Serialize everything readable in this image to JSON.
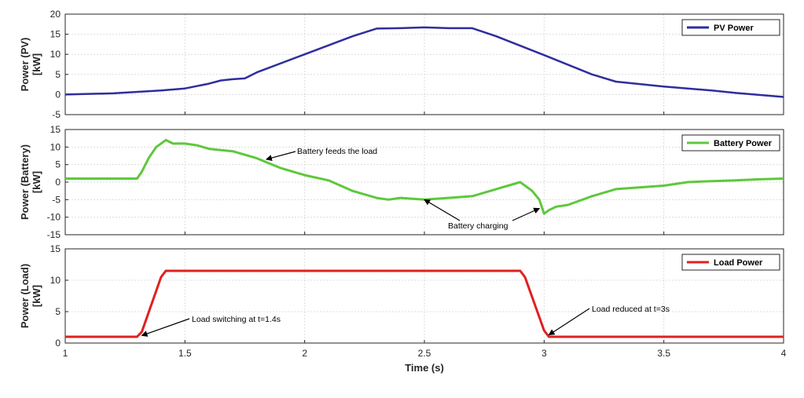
{
  "chart_data": {
    "type": "line",
    "xlabel": "Time (s)",
    "xlim": [
      1,
      4
    ],
    "xticks": [
      1,
      1.5,
      2,
      2.5,
      3,
      3.5,
      4
    ],
    "xtick_labels": [
      "1",
      "1.5",
      "2",
      "2.5",
      "3",
      "3.5",
      "4"
    ],
    "grid": true,
    "panels": [
      {
        "id": "pv",
        "ylabel_lines": [
          "Power (PV)",
          "[kW]"
        ],
        "ylim": [
          -5,
          20
        ],
        "yticks": [
          -5,
          0,
          5,
          10,
          15,
          20
        ],
        "ytick_labels": [
          "-5",
          "0",
          "5",
          "10",
          "15",
          "20"
        ],
        "legend": "top-right",
        "series": [
          {
            "name": "PV Power",
            "color": "#2e2e9e",
            "x": [
              1.0,
              1.2,
              1.4,
              1.5,
              1.6,
              1.65,
              1.7,
              1.75,
              1.8,
              2.0,
              2.2,
              2.3,
              2.4,
              2.5,
              2.6,
              2.7,
              2.8,
              3.0,
              3.2,
              3.3,
              3.5,
              3.6,
              3.7,
              3.8,
              4.0
            ],
            "y": [
              0.0,
              0.3,
              1.0,
              1.5,
              2.7,
              3.5,
              3.8,
              4.0,
              5.5,
              10.0,
              14.5,
              16.4,
              16.5,
              16.7,
              16.5,
              16.5,
              14.5,
              9.8,
              5.0,
              3.2,
              2.0,
              1.5,
              1.0,
              0.4,
              -0.6
            ]
          }
        ],
        "annotations": []
      },
      {
        "id": "battery",
        "ylabel_lines": [
          "Power (Battery)",
          "[kW]"
        ],
        "ylim": [
          -15,
          15
        ],
        "yticks": [
          -15,
          -10,
          -5,
          0,
          5,
          10,
          15
        ],
        "ytick_labels": [
          "-15",
          "-10",
          "-5",
          "0",
          "5",
          "10",
          "15"
        ],
        "legend": "top-right",
        "series": [
          {
            "name": "Battery Power",
            "color": "#5ec83c",
            "x": [
              1.0,
              1.3,
              1.32,
              1.35,
              1.38,
              1.42,
              1.45,
              1.5,
              1.55,
              1.6,
              1.7,
              1.8,
              1.9,
              2.0,
              2.1,
              2.15,
              2.2,
              2.3,
              2.35,
              2.4,
              2.5,
              2.6,
              2.7,
              2.75,
              2.8,
              2.85,
              2.9,
              2.95,
              2.98,
              3.0,
              3.02,
              3.05,
              3.1,
              3.2,
              3.3,
              3.5,
              3.6,
              3.7,
              3.8,
              3.9,
              4.0
            ],
            "y": [
              1.0,
              1.0,
              3.0,
              7.0,
              10.0,
              12.0,
              11.0,
              11.0,
              10.5,
              9.5,
              8.8,
              6.8,
              4.0,
              2.0,
              0.5,
              -1.0,
              -2.5,
              -4.5,
              -5.0,
              -4.5,
              -5.0,
              -4.5,
              -4.0,
              -3.0,
              -2.0,
              -1.0,
              0.0,
              -2.5,
              -5.0,
              -9.0,
              -8.0,
              -7.0,
              -6.5,
              -4.0,
              -2.0,
              -1.0,
              0.0,
              0.3,
              0.5,
              0.8,
              1.0
            ]
          }
        ],
        "annotations": [
          {
            "text": "Battery feeds the load",
            "x": 1.84,
            "y": 6.5
          },
          {
            "text": "Battery charging",
            "x": 2.5,
            "y": -5.0
          },
          {
            "text": "",
            "x": 2.98,
            "y": -7.5
          }
        ]
      },
      {
        "id": "load",
        "ylabel_lines": [
          "Power (Load)",
          "[kW]"
        ],
        "ylim": [
          0,
          15
        ],
        "yticks": [
          0,
          5,
          10,
          15
        ],
        "ytick_labels": [
          "0",
          "5",
          "10",
          "15"
        ],
        "legend": "top-right",
        "series": [
          {
            "name": "Load Power",
            "color": "#e02020",
            "x": [
              1.0,
              1.3,
              1.32,
              1.4,
              1.42,
              2.9,
              2.92,
              3.0,
              3.02,
              4.0
            ],
            "y": [
              1.0,
              1.0,
              1.8,
              10.5,
              11.5,
              11.5,
              10.5,
              2.0,
              1.0,
              1.0
            ]
          }
        ],
        "annotations": [
          {
            "text": "Load switching at t=1.4s",
            "x": 1.32,
            "y": 1.2
          },
          {
            "text": "Load reduced at t=3s",
            "x": 3.02,
            "y": 1.3
          }
        ]
      }
    ]
  }
}
